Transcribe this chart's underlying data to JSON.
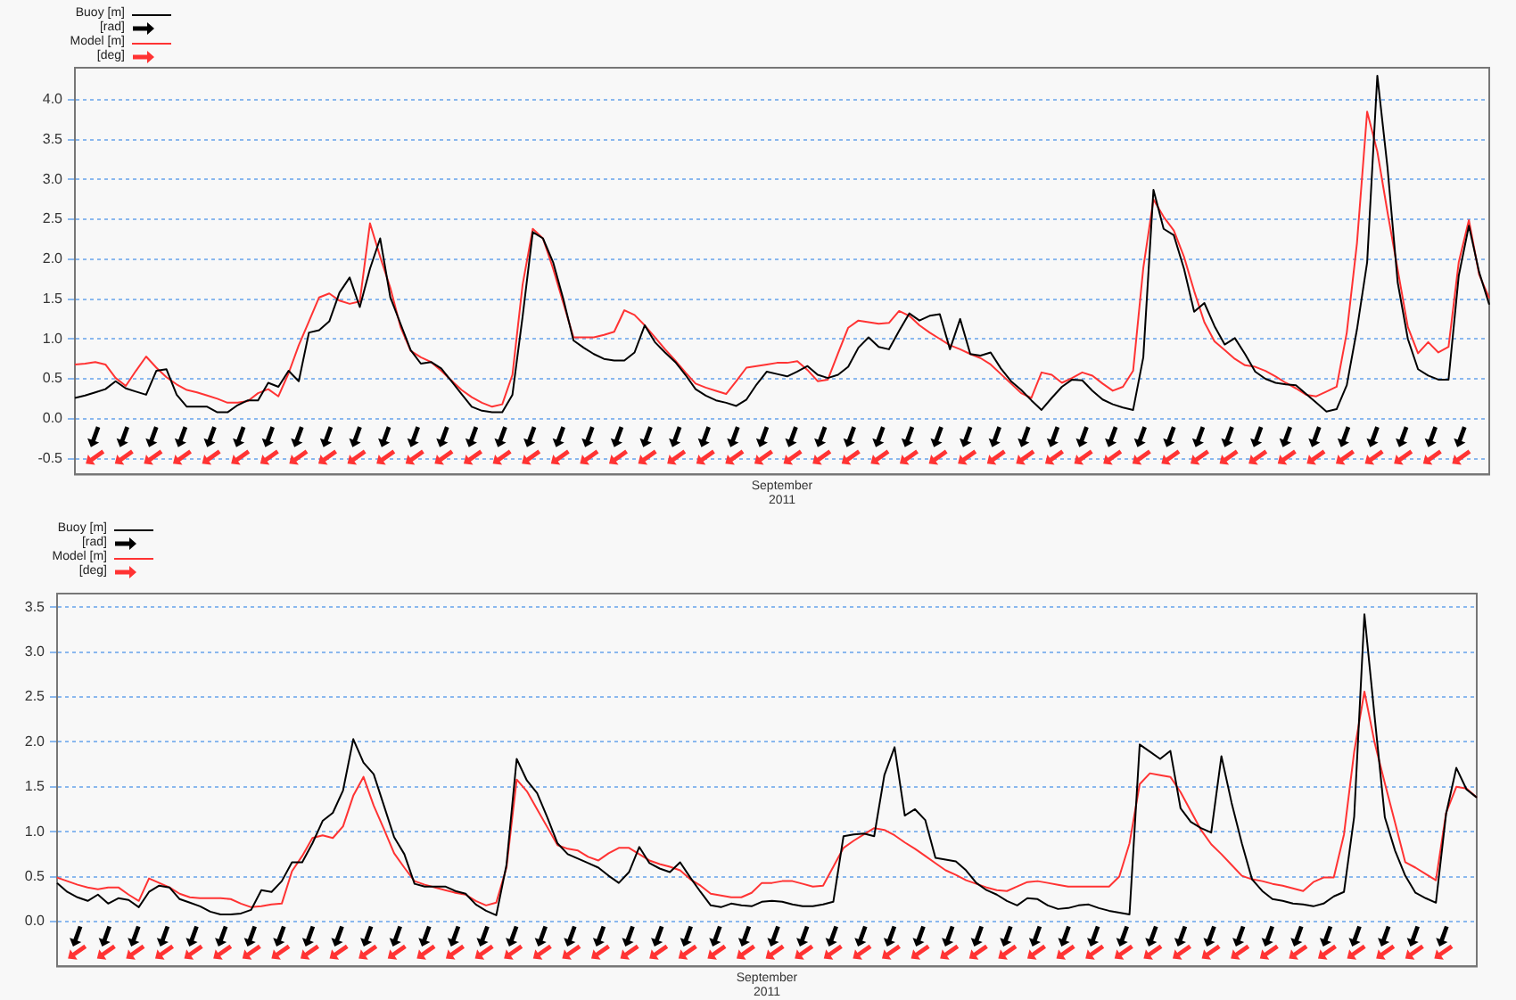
{
  "chart_data": [
    {
      "type": "line",
      "xlabel": "September 2011",
      "legend": "top left",
      "grid": "y",
      "tick_labels": "y",
      "annotations": [
        "[rad]",
        "[deg]"
      ],
      "categories": [
        null,
        null,
        null,
        null,
        null,
        null,
        null,
        null,
        null,
        null,
        null,
        null,
        null,
        null,
        null,
        null,
        null,
        null,
        null,
        null,
        null,
        null,
        null,
        null,
        null,
        null,
        null,
        null,
        null,
        null,
        null,
        null,
        null,
        null,
        null,
        null,
        null,
        null,
        null,
        null,
        null,
        null,
        null,
        null,
        null,
        null,
        null,
        null,
        null,
        null,
        null,
        null,
        null,
        null,
        null,
        null,
        null,
        null,
        null,
        null,
        null,
        null,
        null,
        null,
        null,
        null,
        null,
        null,
        null,
        null,
        null,
        null,
        null,
        null,
        null,
        null,
        null,
        null,
        null,
        null,
        null,
        null,
        null,
        null,
        null,
        null,
        null,
        null,
        null,
        null,
        null,
        null,
        null,
        null,
        null,
        null,
        null,
        null,
        null,
        null,
        null,
        null,
        null,
        null,
        null,
        null,
        null,
        null,
        null,
        null,
        null,
        null,
        null,
        null,
        null,
        null,
        null,
        null,
        null,
        null,
        null,
        null,
        null,
        null,
        null,
        null,
        null,
        null,
        null,
        null,
        null,
        null,
        null,
        null,
        null,
        null,
        null,
        null,
        null,
        null
      ],
      "ylim": [
        -0.7,
        4.4
      ],
      "yticks": [
        {
          "value": -0.5,
          "label": "-0.5"
        },
        {
          "value": 0,
          "label": "0.0"
        },
        {
          "value": 0.5,
          "label": "0.5"
        },
        {
          "value": 1,
          "label": "1.0"
        },
        {
          "value": 1.5,
          "label": "1.5"
        },
        {
          "value": 2,
          "label": "2.0"
        },
        {
          "value": 2.5,
          "label": "2.5"
        },
        {
          "value": 3,
          "label": "3.0"
        },
        {
          "value": 3.5,
          "label": "3.5"
        },
        {
          "value": 4,
          "label": "4.0"
        }
      ],
      "series": [
        {
          "name": "Buoy [m]",
          "color": "#000000",
          "values": [
            0.26,
            0.29,
            0.33,
            0.37,
            0.47,
            0.38,
            0.34,
            0.3,
            0.6,
            0.62,
            0.3,
            0.15,
            0.15,
            0.15,
            0.08,
            0.08,
            0.17,
            0.23,
            0.23,
            0.45,
            0.4,
            0.6,
            0.47,
            1.08,
            1.11,
            1.22,
            1.58,
            1.77,
            1.4,
            1.88,
            2.26,
            1.52,
            1.19,
            0.86,
            0.69,
            0.71,
            0.63,
            0.47,
            0.31,
            0.15,
            0.1,
            0.08,
            0.08,
            0.3,
            1.28,
            2.34,
            2.26,
            1.96,
            1.5,
            0.98,
            0.89,
            0.81,
            0.75,
            0.73,
            0.73,
            0.83,
            1.17,
            0.96,
            0.83,
            0.71,
            0.55,
            0.37,
            0.29,
            0.23,
            0.2,
            0.16,
            0.24,
            0.43,
            0.59,
            0.56,
            0.53,
            0.59,
            0.66,
            0.55,
            0.51,
            0.55,
            0.65,
            0.89,
            1.02,
            0.9,
            0.87,
            1.1,
            1.32,
            1.23,
            1.29,
            1.31,
            0.87,
            1.25,
            0.81,
            0.79,
            0.83,
            0.63,
            0.47,
            0.36,
            0.23,
            0.11,
            0.26,
            0.4,
            0.49,
            0.48,
            0.35,
            0.24,
            0.18,
            0.14,
            0.11,
            0.77,
            2.87,
            2.38,
            2.3,
            1.88,
            1.34,
            1.45,
            1.16,
            0.93,
            1.01,
            0.81,
            0.59,
            0.5,
            0.45,
            0.43,
            0.42,
            0.31,
            0.2,
            0.09,
            0.12,
            0.42,
            1.12,
            1.96,
            4.3,
            3.15,
            1.71,
            1.0,
            0.62,
            0.54,
            0.49,
            0.49,
            1.79,
            2.42,
            1.84,
            1.43
          ]
        },
        {
          "name": "Model [m]",
          "color": "#ff3333",
          "values": [
            0.68,
            0.69,
            0.71,
            0.68,
            0.51,
            0.41,
            0.6,
            0.78,
            0.64,
            0.52,
            0.43,
            0.36,
            0.33,
            0.29,
            0.25,
            0.2,
            0.2,
            0.22,
            0.32,
            0.37,
            0.28,
            0.57,
            0.92,
            1.22,
            1.52,
            1.57,
            1.48,
            1.44,
            1.47,
            2.45,
            2.03,
            1.64,
            1.15,
            0.85,
            0.77,
            0.71,
            0.6,
            0.48,
            0.36,
            0.27,
            0.2,
            0.15,
            0.18,
            0.55,
            1.68,
            2.38,
            2.26,
            1.88,
            1.45,
            1.02,
            1.02,
            1.02,
            1.05,
            1.09,
            1.36,
            1.3,
            1.17,
            1.02,
            0.87,
            0.73,
            0.58,
            0.44,
            0.39,
            0.35,
            0.31,
            0.47,
            0.64,
            0.66,
            0.68,
            0.7,
            0.7,
            0.72,
            0.61,
            0.47,
            0.49,
            0.82,
            1.14,
            1.23,
            1.21,
            1.19,
            1.2,
            1.35,
            1.29,
            1.17,
            1.08,
            1.0,
            0.92,
            0.87,
            0.81,
            0.76,
            0.68,
            0.56,
            0.44,
            0.32,
            0.26,
            0.58,
            0.55,
            0.45,
            0.51,
            0.58,
            0.54,
            0.44,
            0.35,
            0.4,
            0.6,
            1.89,
            2.75,
            2.53,
            2.36,
            2.03,
            1.6,
            1.21,
            0.97,
            0.86,
            0.75,
            0.67,
            0.65,
            0.6,
            0.53,
            0.45,
            0.38,
            0.3,
            0.28,
            0.34,
            0.4,
            1.08,
            2.2,
            3.85,
            3.35,
            2.59,
            1.87,
            1.15,
            0.82,
            0.96,
            0.83,
            0.9,
            1.96,
            2.49,
            1.81,
            1.51
          ]
        }
      ]
    },
    {
      "type": "line",
      "xlabel": "September 2011",
      "legend": "top left",
      "grid": "y",
      "tick_labels": "y",
      "annotations": [
        "[rad]",
        "[deg]"
      ],
      "categories": [
        null,
        null,
        null,
        null,
        null,
        null,
        null,
        null,
        null,
        null,
        null,
        null,
        null,
        null,
        null,
        null,
        null,
        null,
        null,
        null,
        null,
        null,
        null,
        null,
        null,
        null,
        null,
        null,
        null,
        null,
        null,
        null,
        null,
        null,
        null,
        null,
        null,
        null,
        null,
        null,
        null,
        null,
        null,
        null,
        null,
        null,
        null,
        null,
        null,
        null,
        null,
        null,
        null,
        null,
        null,
        null,
        null,
        null,
        null,
        null,
        null,
        null,
        null,
        null,
        null,
        null,
        null,
        null,
        null,
        null,
        null,
        null,
        null,
        null,
        null,
        null,
        null,
        null,
        null,
        null,
        null,
        null,
        null,
        null,
        null,
        null,
        null,
        null,
        null,
        null,
        null,
        null,
        null,
        null,
        null,
        null,
        null,
        null,
        null,
        null,
        null,
        null,
        null,
        null,
        null,
        null,
        null,
        null,
        null,
        null,
        null,
        null,
        null,
        null,
        null,
        null,
        null,
        null,
        null,
        null,
        null,
        null,
        null,
        null,
        null,
        null,
        null,
        null,
        null,
        null,
        null,
        null,
        null,
        null,
        null,
        null,
        null,
        null,
        null,
        null
      ],
      "ylim": [
        -0.5,
        3.65
      ],
      "yticks": [
        {
          "value": 0,
          "label": "0.0"
        },
        {
          "value": 0.5,
          "label": "0.5"
        },
        {
          "value": 1,
          "label": "1.0"
        },
        {
          "value": 1.5,
          "label": "1.5"
        },
        {
          "value": 2,
          "label": "2.0"
        },
        {
          "value": 2.5,
          "label": "2.5"
        },
        {
          "value": 3,
          "label": "3.0"
        },
        {
          "value": 3.5,
          "label": "3.5"
        }
      ],
      "series": [
        {
          "name": "Buoy [m]",
          "color": "#000000",
          "values": [
            0.43,
            0.33,
            0.27,
            0.23,
            0.3,
            0.2,
            0.26,
            0.24,
            0.16,
            0.33,
            0.4,
            0.38,
            0.25,
            0.21,
            0.17,
            0.11,
            0.08,
            0.08,
            0.09,
            0.13,
            0.35,
            0.33,
            0.45,
            0.66,
            0.66,
            0.87,
            1.12,
            1.21,
            1.46,
            2.03,
            1.77,
            1.64,
            1.29,
            0.94,
            0.75,
            0.42,
            0.39,
            0.39,
            0.39,
            0.34,
            0.31,
            0.19,
            0.12,
            0.07,
            0.63,
            1.81,
            1.57,
            1.43,
            1.16,
            0.87,
            0.75,
            0.7,
            0.65,
            0.6,
            0.51,
            0.43,
            0.55,
            0.83,
            0.65,
            0.59,
            0.55,
            0.66,
            0.49,
            0.33,
            0.18,
            0.16,
            0.2,
            0.18,
            0.17,
            0.22,
            0.23,
            0.22,
            0.19,
            0.17,
            0.17,
            0.19,
            0.22,
            0.95,
            0.97,
            0.98,
            0.95,
            1.63,
            1.94,
            1.18,
            1.25,
            1.13,
            0.71,
            0.69,
            0.67,
            0.57,
            0.43,
            0.35,
            0.3,
            0.23,
            0.18,
            0.26,
            0.25,
            0.18,
            0.14,
            0.15,
            0.18,
            0.19,
            0.15,
            0.12,
            0.1,
            0.08,
            1.97,
            1.89,
            1.81,
            1.9,
            1.26,
            1.11,
            1.04,
            0.99,
            1.84,
            1.32,
            0.87,
            0.47,
            0.34,
            0.25,
            0.23,
            0.2,
            0.19,
            0.17,
            0.2,
            0.28,
            0.33,
            1.17,
            3.42,
            2.28,
            1.16,
            0.79,
            0.51,
            0.32,
            0.26,
            0.21,
            1.2,
            1.71,
            1.47,
            1.38
          ]
        },
        {
          "name": "Model [m]",
          "color": "#ff3333",
          "values": [
            0.49,
            0.45,
            0.41,
            0.38,
            0.36,
            0.38,
            0.38,
            0.3,
            0.23,
            0.48,
            0.43,
            0.38,
            0.31,
            0.27,
            0.26,
            0.26,
            0.26,
            0.25,
            0.2,
            0.16,
            0.17,
            0.19,
            0.2,
            0.56,
            0.73,
            0.93,
            0.96,
            0.93,
            1.06,
            1.4,
            1.61,
            1.29,
            1.03,
            0.76,
            0.6,
            0.45,
            0.41,
            0.38,
            0.35,
            0.32,
            0.3,
            0.23,
            0.18,
            0.21,
            0.6,
            1.58,
            1.45,
            1.25,
            1.05,
            0.85,
            0.81,
            0.79,
            0.72,
            0.68,
            0.76,
            0.82,
            0.82,
            0.75,
            0.68,
            0.64,
            0.61,
            0.57,
            0.47,
            0.4,
            0.31,
            0.29,
            0.27,
            0.27,
            0.32,
            0.43,
            0.43,
            0.45,
            0.45,
            0.42,
            0.39,
            0.4,
            0.61,
            0.82,
            0.9,
            0.97,
            1.04,
            1.02,
            0.96,
            0.88,
            0.81,
            0.73,
            0.65,
            0.57,
            0.52,
            0.46,
            0.42,
            0.38,
            0.35,
            0.34,
            0.39,
            0.44,
            0.45,
            0.43,
            0.41,
            0.39,
            0.39,
            0.39,
            0.39,
            0.39,
            0.5,
            0.87,
            1.53,
            1.65,
            1.63,
            1.61,
            1.44,
            1.23,
            1.02,
            0.86,
            0.75,
            0.63,
            0.51,
            0.47,
            0.45,
            0.42,
            0.4,
            0.37,
            0.34,
            0.44,
            0.49,
            0.49,
            0.97,
            1.89,
            2.56,
            1.99,
            1.54,
            1.1,
            0.66,
            0.6,
            0.53,
            0.46,
            1.21,
            1.5,
            1.48,
            1.38
          ]
        }
      ]
    }
  ]
}
